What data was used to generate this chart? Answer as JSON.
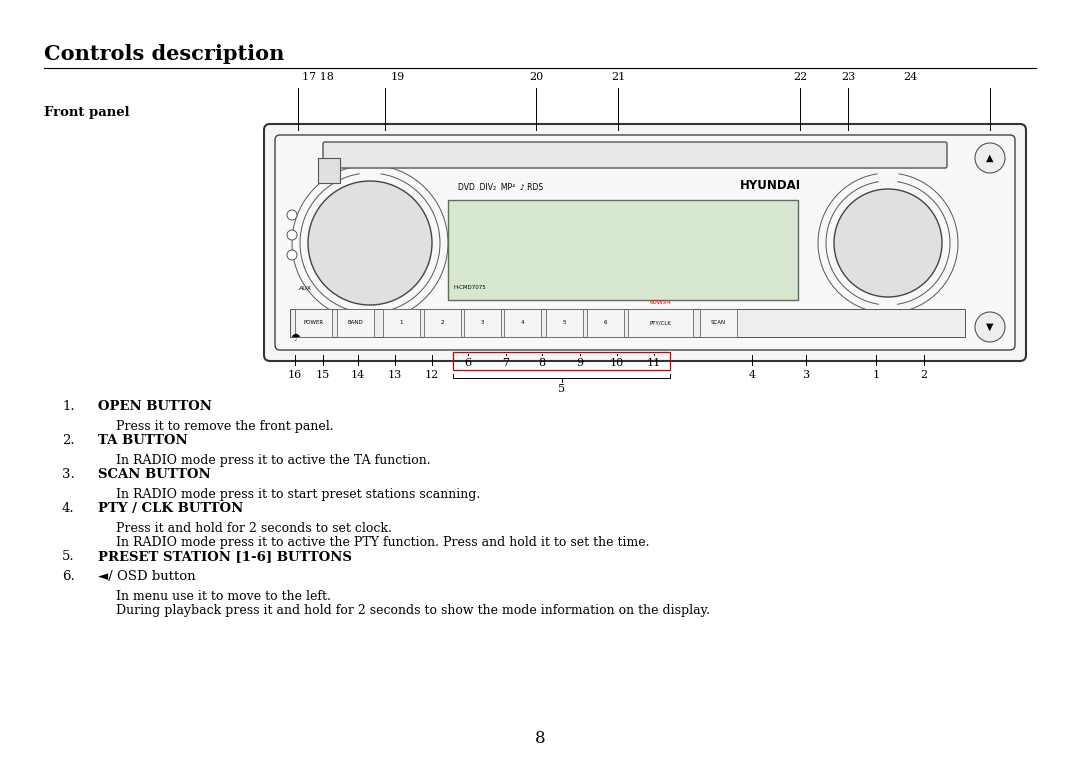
{
  "title": "Controls description",
  "subtitle": "Front panel",
  "bg_color": "#ffffff",
  "text_color": "#000000",
  "title_fontsize": 15,
  "body_fontsize": 9.5,
  "page_number": "8",
  "items": [
    {
      "num": "1.",
      "title": "OPEN BUTTON",
      "title_bold": true,
      "desc": [
        "Press it to remove the front panel."
      ]
    },
    {
      "num": "2.",
      "title": "TA BUTTON",
      "title_bold": true,
      "desc": [
        "In RADIO mode press it to active the TA function."
      ]
    },
    {
      "num": "3.",
      "title": "SCAN BUTTON",
      "title_bold": true,
      "desc": [
        "In RADIO mode press it to start preset stations scanning."
      ]
    },
    {
      "num": "4.",
      "title": "PTY / CLK BUTTON",
      "title_bold": true,
      "desc": [
        "Press it and hold for 2 seconds to set clock.",
        "In RADIO mode press it to active the PTY function. Press and hold it to set the time."
      ]
    },
    {
      "num": "5.",
      "title": "PRESET STATION [1-6] BUTTONS",
      "title_bold": true,
      "desc": []
    },
    {
      "num": "6.",
      "title": "◄/ OSD button",
      "title_bold": false,
      "desc": [
        "In menu use it to move to the left.",
        "During playback press it and hold for 2 seconds to show the mode information on the display."
      ]
    }
  ]
}
